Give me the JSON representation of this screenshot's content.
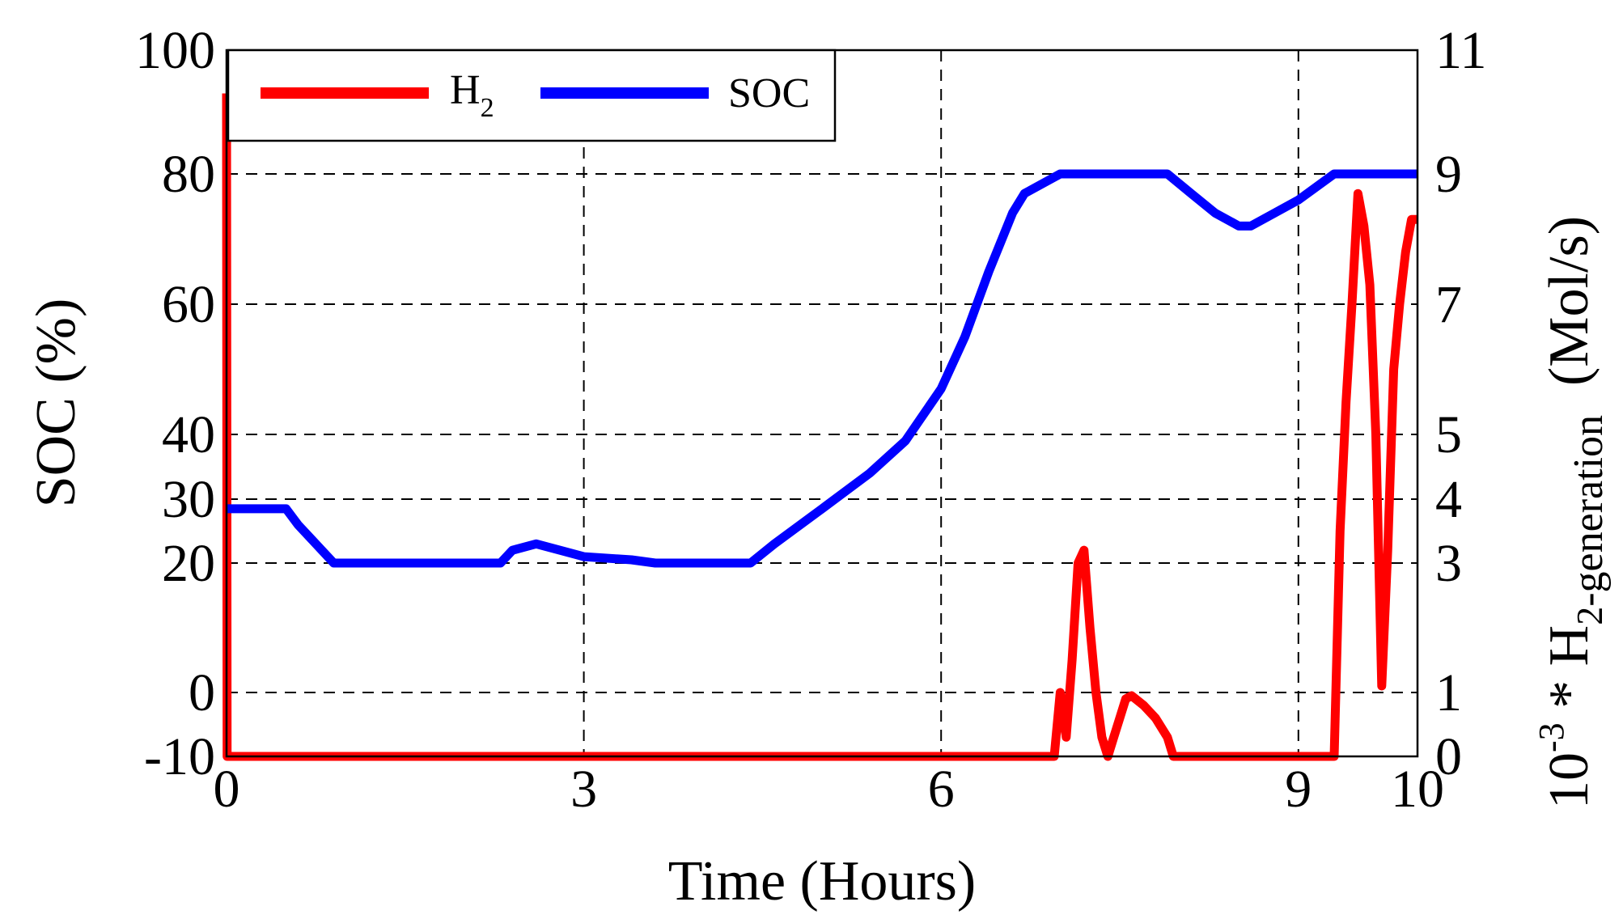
{
  "chart_data": {
    "type": "line",
    "xlabel": "Time (Hours)",
    "ylabel_left": "SOC  (%)",
    "ylabel_right": {
      "prefix": "10",
      "prefix_sup": "-3",
      "mid": " * H",
      "mid_sub": "2",
      "sub": "-generation",
      "unit": "(Mol/s)"
    },
    "xlim": [
      0,
      10
    ],
    "x_ticks": [
      0,
      3,
      6,
      9,
      10
    ],
    "x_tick_labels": [
      "0",
      "3",
      "6",
      "9",
      "10"
    ],
    "y_left_ticks": [
      -10,
      0,
      20,
      30,
      40,
      60,
      80,
      100
    ],
    "y_left_tick_labels": [
      "-10",
      "0",
      "20",
      "30",
      "40",
      "60",
      "80",
      "100"
    ],
    "y_right_ticks": [
      0,
      1,
      3,
      4,
      5,
      7,
      9,
      11
    ],
    "y_right_tick_labels": [
      "0",
      "1",
      "3",
      "4",
      "5",
      "7",
      "9",
      "11"
    ],
    "y_right_to_left_map": {
      "0": -10,
      "1": 0,
      "3": 20,
      "4": 30,
      "5": 40,
      "7": 60,
      "9": 80,
      "11": 100
    },
    "grid": true,
    "legend_position": "top-left",
    "series": [
      {
        "name": "H2",
        "legend_label": "H",
        "legend_label_sub": "2",
        "axis": "right",
        "color": "#ff0000",
        "x": [
          0,
          0.005,
          0.01,
          6.95,
          7.0,
          7.05,
          7.1,
          7.15,
          7.2,
          7.25,
          7.3,
          7.35,
          7.4,
          7.45,
          7.5,
          7.55,
          7.6,
          7.7,
          7.8,
          7.9,
          7.95,
          8.0,
          8.5,
          9.0,
          9.3,
          9.35,
          9.4,
          9.45,
          9.5,
          9.55,
          9.6,
          9.65,
          9.7,
          9.75,
          9.8,
          9.85,
          9.9,
          9.95,
          10.0
        ],
        "values": [
          10.3,
          0.0,
          0.0,
          0.0,
          1.0,
          0.3,
          1.5,
          3.0,
          3.2,
          2.0,
          1.0,
          0.3,
          0.0,
          0.3,
          0.6,
          0.9,
          0.95,
          0.8,
          0.6,
          0.3,
          0.0,
          0.0,
          0.0,
          0.0,
          0.0,
          3.5,
          5.5,
          7.0,
          8.7,
          8.2,
          7.3,
          5.0,
          1.1,
          3.2,
          6.0,
          7.0,
          7.8,
          8.3,
          8.3
        ]
      },
      {
        "name": "SOC",
        "legend_label": "SOC",
        "axis": "left",
        "color": "#0000ff",
        "x": [
          0,
          0.5,
          0.6,
          0.8,
          0.9,
          2.3,
          2.4,
          2.6,
          2.8,
          3.0,
          3.4,
          3.6,
          3.8,
          4.4,
          4.6,
          5.0,
          5.4,
          5.7,
          6.0,
          6.2,
          6.4,
          6.6,
          6.7,
          6.9,
          7.0,
          7.9,
          8.1,
          8.3,
          8.5,
          8.6,
          8.8,
          9.0,
          9.3,
          10.0
        ],
        "values": [
          28.5,
          28.5,
          26,
          22,
          20,
          20,
          22,
          23,
          22,
          21,
          20.5,
          20,
          20,
          20,
          23,
          28.5,
          34,
          39,
          47,
          55,
          65,
          74,
          77,
          79,
          80,
          80,
          77,
          74,
          72,
          72,
          74,
          76,
          80,
          80
        ]
      }
    ]
  }
}
